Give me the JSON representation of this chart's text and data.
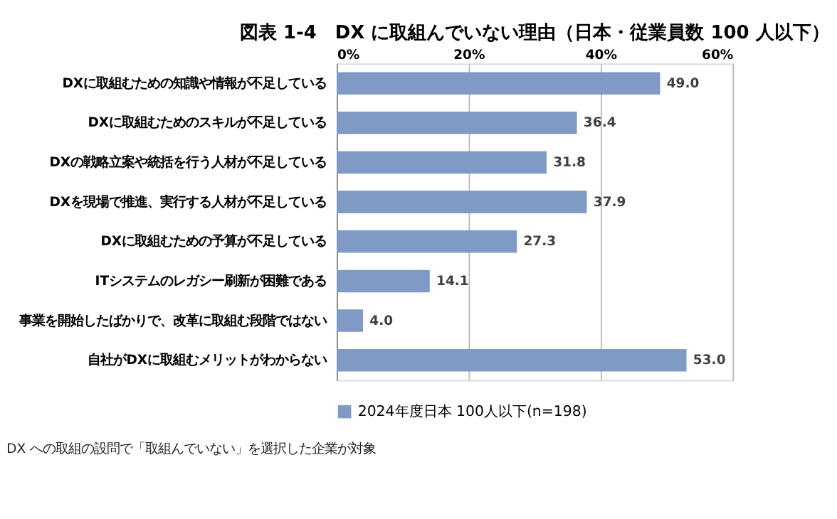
{
  "chart_data": {
    "type": "bar",
    "orientation": "horizontal",
    "title": "図表 1-4　DX に取組んでいない理由（日本・従業員数 100 人以下）",
    "categories": [
      "DXに取組むための知識や情報が不足している",
      "DXに取組むためのスキルが不足している",
      "DXの戦略立案や統括を行う人材が不足している",
      "DXを現場で推進、実行する人材が不足している",
      "DXに取組むための予算が不足している",
      "ITシステムのレガシー刷新が困難である",
      "事業を開始したばかりで、改革に取組む段階ではない",
      "自社がDXに取組むメリットがわからない"
    ],
    "series": [
      {
        "name": "2024年度日本 100人以下(n=198)",
        "color": "#7f9ac4",
        "values": [
          49.0,
          36.4,
          31.8,
          37.9,
          27.3,
          14.1,
          4.0,
          53.0
        ]
      }
    ],
    "xlim": [
      0,
      60
    ],
    "xticks": [
      {
        "value": 0,
        "label": "0%"
      },
      {
        "value": 20,
        "label": "20%"
      },
      {
        "value": 40,
        "label": "40%"
      },
      {
        "value": 60,
        "label": "60%"
      }
    ],
    "grid": "x",
    "legend": "bottom",
    "value_labels": [
      "49.0",
      "36.4",
      "31.8",
      "37.9",
      "27.3",
      "14.1",
      "4.0",
      "53.0"
    ],
    "annotations": [
      "DX への取組の設問で「取組んでいない」を選択した企業が対象"
    ]
  }
}
